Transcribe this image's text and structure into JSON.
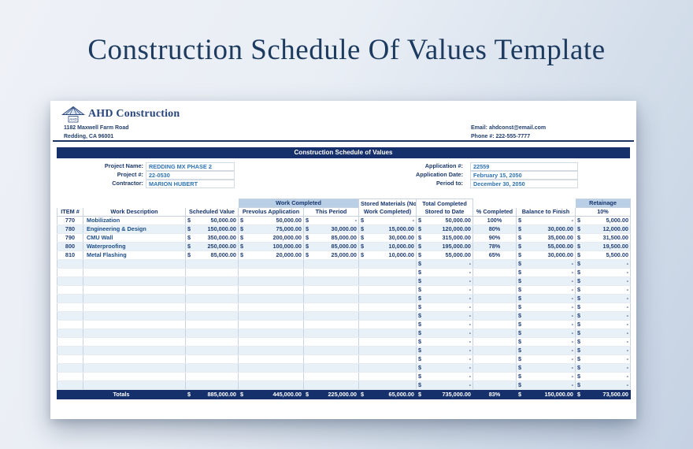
{
  "page": {
    "title": "Construction Schedule Of Values Template"
  },
  "company": {
    "name": "AHD Construction",
    "logo_text": "AHD",
    "address_line1": "1182 Maxwell Farm Road",
    "address_line2": "Redding, CA 96001",
    "email": "Email: ahdconst@email.com",
    "phone": "Phone #: 222-555-7777"
  },
  "banner": "Construction Schedule of Values",
  "project": {
    "name_label": "Project Name:",
    "name": "REDDING MX PHASE 2",
    "number_label": "Project #:",
    "number": "22-0530",
    "contractor_label": "Contractor:",
    "contractor": "MARION HUBERT"
  },
  "application": {
    "number_label": "Application #:",
    "number": "22559",
    "date_label": "Application Date:",
    "date": "February 15, 2050",
    "period_label": "Period to:",
    "period": "December 30, 2050"
  },
  "colors": {
    "navy": "#16306b",
    "header_light_blue": "#b9cfe6",
    "row_stripe": "#e9f1f8",
    "value_blue": "#2f74b5"
  },
  "table": {
    "currency": "$",
    "empty_placeholder": "-",
    "empty_row_count": 15,
    "header": {
      "work_completed": "Work Completed",
      "retainage": "Retainage",
      "stored_materials_l1": "Stored Materials (Not In",
      "stored_materials_l2": "Work Completed)",
      "total_completed_l1": "Total Completed",
      "total_completed_l2": "Stored to Date",
      "item": "ITEM #",
      "desc": "Work Description",
      "scheduled": "Scheduled Value",
      "prev": "Prevolus Application",
      "period": "This Period",
      "pct": "% Completed",
      "balance": "Balance to Finish",
      "retainage_pct": "10%"
    },
    "rows": [
      {
        "item": "770",
        "desc": "Mobilization",
        "scheduled": "50,000.00",
        "prev": "50,000.00",
        "period": "-",
        "stored": "-",
        "total": "50,000.00",
        "pct": "100%",
        "balance": "-",
        "retainage": "5,000.00"
      },
      {
        "item": "780",
        "desc": "Engineering & Design",
        "scheduled": "150,000.00",
        "prev": "75,000.00",
        "period": "30,000.00",
        "stored": "15,000.00",
        "total": "120,000.00",
        "pct": "80%",
        "balance": "30,000.00",
        "retainage": "12,000.00"
      },
      {
        "item": "790",
        "desc": "CMU Wall",
        "scheduled": "350,000.00",
        "prev": "200,000.00",
        "period": "85,000.00",
        "stored": "30,000.00",
        "total": "315,000.00",
        "pct": "90%",
        "balance": "35,000.00",
        "retainage": "31,500.00"
      },
      {
        "item": "800",
        "desc": "Waterproofing",
        "scheduled": "250,000.00",
        "prev": "100,000.00",
        "period": "85,000.00",
        "stored": "10,000.00",
        "total": "195,000.00",
        "pct": "78%",
        "balance": "55,000.00",
        "retainage": "19,500.00"
      },
      {
        "item": "810",
        "desc": "Metal Flashing",
        "scheduled": "85,000.00",
        "prev": "20,000.00",
        "period": "25,000.00",
        "stored": "10,000.00",
        "total": "55,000.00",
        "pct": "65%",
        "balance": "30,000.00",
        "retainage": "5,500.00"
      }
    ],
    "totals": {
      "label": "Totals",
      "scheduled": "885,000.00",
      "prev": "445,000.00",
      "period": "225,000.00",
      "stored": "65,000.00",
      "total": "735,000.00",
      "pct": "83%",
      "balance": "150,000.00",
      "retainage": "73,500.00"
    }
  }
}
